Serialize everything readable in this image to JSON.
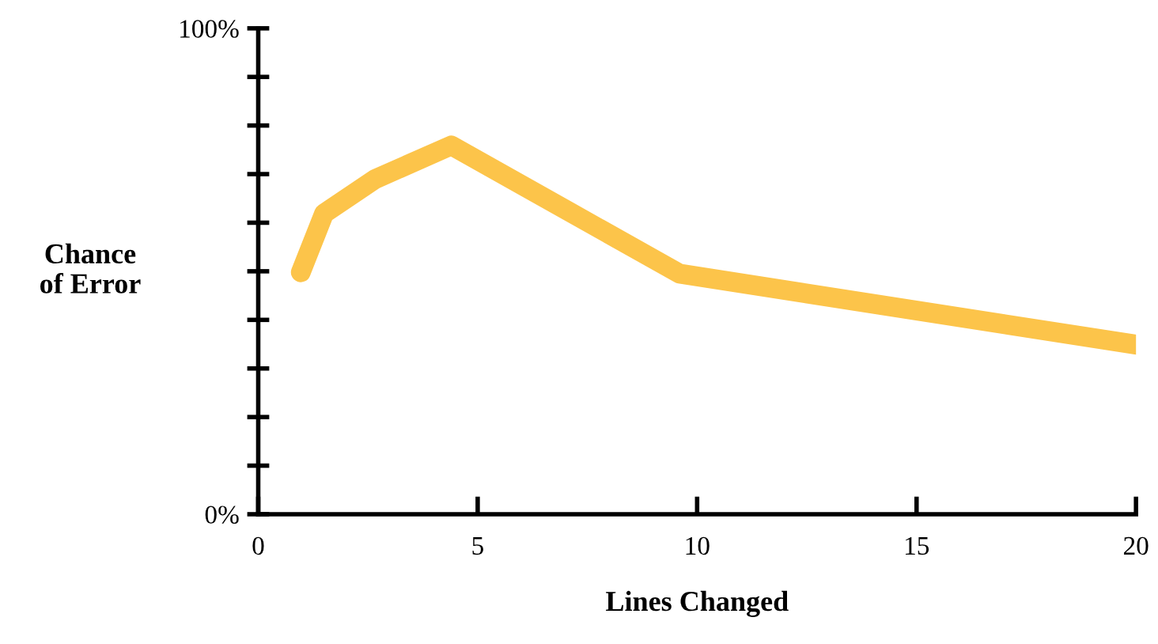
{
  "chart_data": {
    "type": "line",
    "xlabel": "Lines Changed",
    "ylabel": "Chance\nof Error",
    "x": [
      0.97,
      1.5,
      2.67,
      4.4,
      9.6,
      20
    ],
    "series": [
      {
        "color": "#fcc44a",
        "values": [
          49.8,
          61.9,
          69,
          75.9,
          49.5,
          34.9
        ]
      }
    ],
    "xlim": [
      0,
      20
    ],
    "xticks": [
      0,
      5,
      10,
      15,
      20
    ],
    "ylim": [
      0,
      100
    ],
    "yticks": [
      {
        "value": 0,
        "label": "0%"
      },
      {
        "value": 10,
        "label": null
      },
      {
        "value": 20,
        "label": null
      },
      {
        "value": 30,
        "label": null
      },
      {
        "value": 40,
        "label": null
      },
      {
        "value": 50,
        "label": null
      },
      {
        "value": 60,
        "label": null
      },
      {
        "value": 70,
        "label": null
      },
      {
        "value": 80,
        "label": null
      },
      {
        "value": 90,
        "label": null
      },
      {
        "value": 100,
        "label": "100%"
      }
    ],
    "grid": false,
    "legend": false,
    "marker": "none",
    "line_style": "solid"
  }
}
